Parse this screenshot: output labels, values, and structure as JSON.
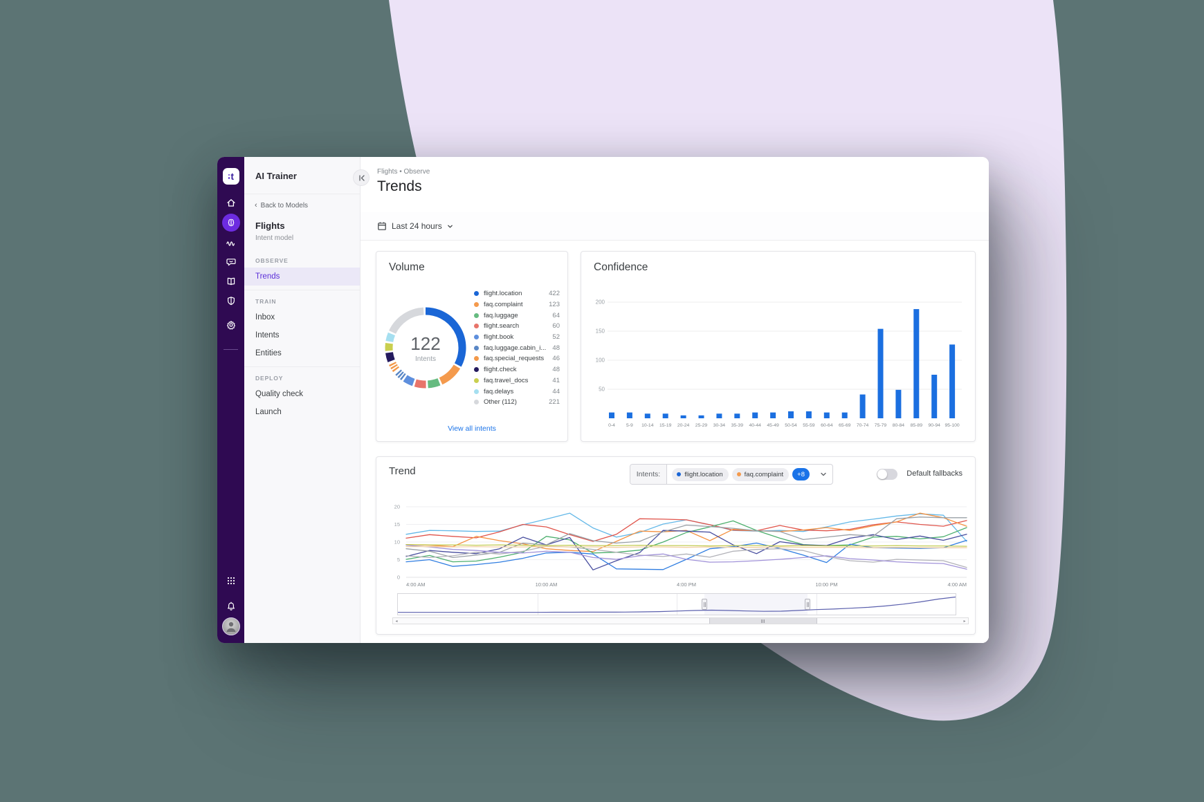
{
  "colors": {
    "accent_blue": "#1a73e8",
    "rail_bg": "#2f0a52",
    "active_purple": "#6d2ce0",
    "active_item_text": "#5b2ed8",
    "blob": "#ece3f7",
    "backdrop": "#5c7474"
  },
  "rail": {
    "logo_text": "t",
    "icons": [
      "home",
      "brain",
      "waveform",
      "chat",
      "book",
      "shield",
      "gear"
    ],
    "bottom_icons": [
      "apps-grid",
      "bell",
      "avatar"
    ]
  },
  "sidebar": {
    "app_title": "AI Trainer",
    "back_link": "Back to Models",
    "model_name": "Flights",
    "model_type": "Intent model",
    "sections": [
      {
        "label": "OBSERVE",
        "items": [
          {
            "label": "Trends",
            "active": true
          }
        ]
      },
      {
        "label": "TRAIN",
        "items": [
          {
            "label": "Inbox",
            "active": false
          },
          {
            "label": "Intents",
            "active": false
          },
          {
            "label": "Entities",
            "active": false
          }
        ]
      },
      {
        "label": "DEPLOY",
        "items": [
          {
            "label": "Quality check",
            "active": false
          },
          {
            "label": "Launch",
            "active": false
          }
        ]
      }
    ]
  },
  "header": {
    "breadcrumb": "Flights • Observe",
    "title": "Trends"
  },
  "toolbar": {
    "time_range": "Last 24 hours"
  },
  "volume_card": {
    "title": "Volume",
    "center_value": "122",
    "center_label": "Intents",
    "link_label": "View all intents",
    "chart_data": {
      "type": "donut",
      "items": [
        {
          "label": "flight.location",
          "value": 422,
          "color": "#1a66d6"
        },
        {
          "label": "faq.complaint",
          "value": 123,
          "color": "#f49a4d"
        },
        {
          "label": "faq.luggage",
          "value": 64,
          "color": "#66bb80"
        },
        {
          "label": "flight.search",
          "value": 60,
          "color": "#e8746a"
        },
        {
          "label": "flight.book",
          "value": 52,
          "color": "#5e8fdd"
        },
        {
          "label": "faq.luggage.cabin_i...",
          "value": 48,
          "color": "#5a87c5",
          "pattern": "dotted"
        },
        {
          "label": "faq.special_requests",
          "value": 46,
          "color": "#f3994a",
          "pattern": "dotted"
        },
        {
          "label": "flight.check",
          "value": 48,
          "color": "#241a5e"
        },
        {
          "label": "faq.travel_docs",
          "value": 41,
          "color": "#c9cf4f"
        },
        {
          "label": "faq.delays",
          "value": 44,
          "color": "#a5dff0"
        },
        {
          "label": "Other (112)",
          "value": 221,
          "color": "#d6d8dc"
        }
      ]
    }
  },
  "confidence_card": {
    "title": "Confidence",
    "chart_data": {
      "type": "bar",
      "categories": [
        "0-4",
        "5-9",
        "10-14",
        "15-19",
        "20-24",
        "25-29",
        "30-34",
        "35-39",
        "40-44",
        "45-49",
        "50-54",
        "55-59",
        "60-64",
        "65-69",
        "70-74",
        "75-79",
        "80-84",
        "85-89",
        "90-94",
        "95-100"
      ],
      "values": [
        10,
        10,
        8,
        8,
        5,
        5,
        8,
        8,
        10,
        10,
        12,
        12,
        10,
        10,
        41,
        154,
        49,
        188,
        75,
        127
      ],
      "bar_color": "#1b6fe0",
      "yticks": [
        50,
        100,
        150,
        200
      ],
      "ylim": [
        0,
        200
      ],
      "grid": true
    }
  },
  "trend_card": {
    "title": "Trend",
    "filter_label": "Intents:",
    "chips": [
      {
        "label": "flight.location",
        "color": "#1a66d6"
      },
      {
        "label": "faq.complaint",
        "color": "#f49a4d"
      }
    ],
    "more_label": "+8",
    "toggle_label": "Default fallbacks",
    "toggle_on": false,
    "chart_data": {
      "type": "line",
      "x_labels": [
        "4:00 AM",
        "10:00 AM",
        "4:00 PM",
        "10:00 PM",
        "4:00 AM"
      ],
      "yticks": [
        0,
        5,
        10,
        15,
        20
      ],
      "ylim": [
        0,
        20
      ],
      "grid": true,
      "series": [
        {
          "name": "sky-blue",
          "color": "#63b8e8",
          "values": [
            12.2,
            13.3,
            13.2,
            13.0,
            13.1,
            14.9,
            16.5,
            18.2,
            14.0,
            11.4,
            12.7,
            15.1,
            16.3,
            14.9,
            13.3,
            13.1,
            13.3,
            13.0,
            14.3,
            15.7,
            16.5,
            17.4,
            18.0,
            17.6,
            10.2
          ]
        },
        {
          "name": "red",
          "color": "#e0544b",
          "values": [
            11.1,
            12.1,
            11.6,
            11.2,
            12.9,
            15.0,
            14.3,
            12.1,
            10.2,
            12.2,
            16.6,
            16.5,
            16.3,
            14.9,
            13.4,
            13.2,
            14.7,
            13.4,
            13.2,
            13.6,
            14.9,
            15.7,
            15.0,
            14.5,
            16.1
          ]
        },
        {
          "name": "orange",
          "color": "#f59140",
          "values": [
            9.3,
            9.1,
            8.7,
            11.6,
            10.4,
            9.5,
            8.1,
            7.6,
            7.3,
            10.2,
            13.1,
            12.9,
            13.3,
            10.4,
            13.6,
            13.2,
            13.0,
            13.4,
            14.1,
            13.3,
            14.6,
            15.7,
            18.2,
            16.9,
            14.5
          ]
        },
        {
          "name": "green",
          "color": "#4caf6d",
          "values": [
            5.1,
            6.2,
            4.4,
            4.6,
            5.7,
            7.1,
            11.6,
            10.6,
            6.9,
            7.1,
            7.7,
            10.0,
            12.7,
            14.3,
            16.0,
            13.3,
            11.1,
            9.3,
            9.0,
            9.2,
            11.4,
            11.6,
            10.9,
            11.5,
            14.1
          ]
        },
        {
          "name": "indigo",
          "color": "#474d9e",
          "values": [
            5.9,
            7.6,
            7.1,
            6.7,
            8.1,
            11.4,
            9.2,
            11.3,
            2.1,
            4.7,
            7.0,
            13.3,
            13.1,
            12.8,
            9.2,
            6.7,
            10.1,
            9.2,
            9.0,
            11.1,
            12.1,
            10.7,
            11.7,
            10.5,
            12.2
          ]
        },
        {
          "name": "blue",
          "color": "#2f7de1",
          "values": [
            4.4,
            5.0,
            3.1,
            3.6,
            4.3,
            5.4,
            6.9,
            7.1,
            6.6,
            2.4,
            2.3,
            2.2,
            5.1,
            8.1,
            8.7,
            9.7,
            8.2,
            6.3,
            4.2,
            9.4,
            8.4,
            8.3,
            8.2,
            8.4,
            10.5
          ]
        },
        {
          "name": "gray-dark",
          "color": "#9aa0a6",
          "values": [
            8.1,
            7.4,
            5.6,
            6.3,
            7.1,
            9.7,
            9.2,
            12.4,
            10.4,
            9.7,
            10.2,
            12.9,
            14.8,
            14.4,
            13.9,
            13.2,
            13.0,
            10.7,
            11.4,
            12.1,
            11.7,
            16.6,
            17.1,
            16.9,
            16.9
          ]
        },
        {
          "name": "gray-light",
          "color": "#b2b2b8",
          "values": [
            6.1,
            5.6,
            6.1,
            7.1,
            6.6,
            7.4,
            8.8,
            8.6,
            7.9,
            7.1,
            6.3,
            5.9,
            6.6,
            5.7,
            7.4,
            7.9,
            8.1,
            7.6,
            5.9,
            4.7,
            4.3,
            5.1,
            4.9,
            4.7,
            2.8
          ]
        },
        {
          "name": "light-purple",
          "color": "#a192d9",
          "values": [
            9.1,
            8.6,
            7.9,
            7.6,
            7.1,
            6.9,
            7.4,
            7.1,
            5.6,
            5.1,
            6.1,
            6.6,
            5.1,
            4.3,
            4.4,
            4.7,
            5.1,
            5.6,
            6.1,
            5.3,
            4.9,
            4.4,
            4.1,
            3.9,
            2.3
          ]
        },
        {
          "name": "olive",
          "color": "#c3cc52",
          "values": [
            9.3,
            9.2,
            9.2,
            9.1,
            9.2,
            9.1,
            9.0,
            9.1,
            9.0,
            9.0,
            9.1,
            9.0,
            9.0,
            8.9,
            9.0,
            9.0,
            8.9,
            9.0,
            8.9,
            8.9,
            8.9,
            9.0,
            8.9,
            8.9,
            8.8
          ]
        },
        {
          "name": "tan",
          "color": "#f2cfa4",
          "values": [
            8.7,
            8.7,
            8.6,
            8.7,
            8.6,
            8.6,
            8.7,
            8.6,
            8.6,
            8.5,
            8.6,
            8.6,
            8.5,
            8.6,
            8.5,
            8.5,
            8.6,
            8.5,
            8.5,
            8.5,
            8.4,
            8.5,
            8.4,
            8.4,
            8.4
          ]
        }
      ]
    },
    "navigator": {
      "color": "#5a5fad",
      "selection": [
        0.55,
        0.735
      ],
      "values": [
        1.0,
        1.0,
        1.0,
        1.0,
        1.0,
        1.0,
        1.0,
        1.0,
        1.0,
        1.1,
        1.1,
        1.2,
        1.2,
        1.3,
        1.5,
        1.8,
        2.4,
        3.0,
        3.4,
        3.0,
        2.5,
        2.1,
        2.3,
        3.1,
        4.0,
        4.6,
        5.5,
        6.5,
        8.0,
        10.0,
        12.5,
        15.5,
        17.8
      ]
    }
  }
}
